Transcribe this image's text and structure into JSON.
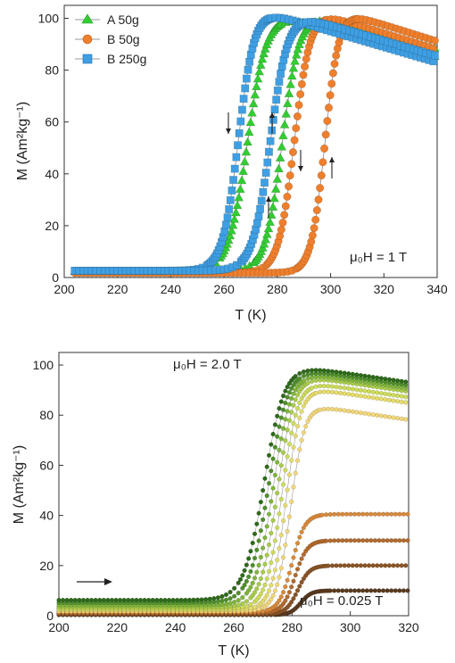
{
  "chart_data": [
    {
      "type": "line",
      "title": "",
      "xlabel": "T (K)",
      "ylabel": "M (Am²kg⁻¹)",
      "xlim": [
        200,
        340
      ],
      "ylim": [
        0,
        105
      ],
      "xticks": [
        "200",
        "220",
        "240",
        "260",
        "280",
        "300",
        "320",
        "340"
      ],
      "yticks": [
        "0",
        "20",
        "40",
        "60",
        "80",
        "100"
      ],
      "legend_position": "top-left",
      "annotation": "μ₀H = 1 T",
      "series": [
        {
          "name": "A 50g",
          "marker": "triangle",
          "color": "#33cc33",
          "branches": [
            {
              "direction": "cooling",
              "Tt": 269,
              "w": 3.6,
              "low": 2.4,
              "high_ref": 101.6,
              "slope": -0.27,
              "peak": 279
            },
            {
              "direction": "heating",
              "Tt": 282,
              "w": 3.2,
              "low": 2.4,
              "high_ref": 101.6,
              "slope": -0.27,
              "peak": 291
            }
          ]
        },
        {
          "name": "B 50g",
          "marker": "circle",
          "color": "#ee7f2d",
          "branches": [
            {
              "direction": "cooling",
              "Tt": 286.5,
              "w": 3.0,
              "low": 1.8,
              "high_ref": 102.0,
              "slope": -0.32,
              "peak": 296
            },
            {
              "direction": "heating",
              "Tt": 298,
              "w": 2.6,
              "low": 1.8,
              "high_ref": 102.0,
              "slope": -0.32,
              "peak": 306
            }
          ]
        },
        {
          "name": "B 250g",
          "marker": "square",
          "color": "#3f9fe3",
          "branches": [
            {
              "direction": "cooling",
              "Tt": 265.5,
              "w": 3.0,
              "low": 2.6,
              "high_ref": 102.5,
              "slope": -0.3,
              "peak": 275
            },
            {
              "direction": "heating",
              "Tt": 277.5,
              "w": 3.3,
              "low": 2.6,
              "high_ref": 102.5,
              "slope": -0.3,
              "peak": 283
            }
          ]
        }
      ],
      "arrows": [
        "down",
        "up",
        "down",
        "up",
        "down",
        "up"
      ]
    },
    {
      "type": "line",
      "title": "",
      "xlabel": "T (K)",
      "ylabel": "M (Am²kg⁻¹)",
      "xlim": [
        200,
        320
      ],
      "ylim": [
        0,
        105
      ],
      "xticks": [
        "200",
        "220",
        "240",
        "260",
        "280",
        "300",
        "320"
      ],
      "yticks": [
        "0",
        "20",
        "40",
        "60",
        "80",
        "100"
      ],
      "annotation_top": "μ₀H = 2.0 T",
      "annotation_bottom": "μ₀H = 0.025 T",
      "arrow": "right",
      "series": [
        {
          "field_index": 0,
          "Tt": 283.0,
          "w": 1.8,
          "low": 0.3,
          "sat": 10.0,
          "slope": 0.0,
          "color": "#5a3a1e"
        },
        {
          "field_index": 1,
          "Tt": 282.0,
          "w": 2.0,
          "low": 0.6,
          "sat": 20.0,
          "slope": 0.0,
          "color": "#8a5426"
        },
        {
          "field_index": 2,
          "Tt": 281.0,
          "w": 2.1,
          "low": 1.0,
          "sat": 30.0,
          "slope": 0.0,
          "color": "#b36a2c"
        },
        {
          "field_index": 3,
          "Tt": 280.0,
          "w": 2.2,
          "low": 1.4,
          "sat": 40.5,
          "slope": 0.0,
          "color": "#d98a3a"
        },
        {
          "field_index": 4,
          "Tt": 279.5,
          "w": 2.4,
          "low": 1.8,
          "sat": 84.0,
          "slope": -0.17,
          "color": "#f2d77a"
        },
        {
          "field_index": 5,
          "Tt": 278.0,
          "w": 2.5,
          "low": 2.3,
          "sat": 91.0,
          "slope": -0.17,
          "color": "#e6dc6b"
        },
        {
          "field_index": 6,
          "Tt": 276.5,
          "w": 2.7,
          "low": 2.8,
          "sat": 93.5,
          "slope": -0.17,
          "color": "#cddc5a"
        },
        {
          "field_index": 7,
          "Tt": 275.0,
          "w": 2.9,
          "low": 3.4,
          "sat": 96.0,
          "slope": -0.17,
          "color": "#a8cc4a"
        },
        {
          "field_index": 8,
          "Tt": 273.5,
          "w": 3.1,
          "low": 4.2,
          "sat": 97.5,
          "slope": -0.17,
          "color": "#7fb53a"
        },
        {
          "field_index": 9,
          "Tt": 272.0,
          "w": 3.3,
          "low": 5.2,
          "sat": 99.0,
          "slope": -0.17,
          "color": "#4f8f2a"
        },
        {
          "field_index": 10,
          "Tt": 270.5,
          "w": 3.5,
          "low": 6.2,
          "sat": 100.5,
          "slope": -0.17,
          "color": "#2e6a1a"
        }
      ]
    }
  ]
}
